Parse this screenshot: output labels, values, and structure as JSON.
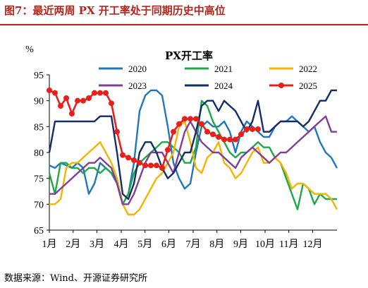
{
  "figure": {
    "title": "图7：最近两周 PX 开工率处于同期历史中高位",
    "source": "数据来源：Wind、开源证券研究所"
  },
  "chart_data": {
    "type": "line",
    "title": "PX开工率",
    "ylabel": "%",
    "ylim": [
      65,
      95
    ],
    "yticks": [
      65,
      70,
      75,
      80,
      85,
      90,
      95
    ],
    "xlim": [
      0,
      52
    ],
    "month_ticks": [
      {
        "label": "1月",
        "x": 0
      },
      {
        "label": "2月",
        "x": 4.3
      },
      {
        "label": "3月",
        "x": 8.6
      },
      {
        "label": "4月",
        "x": 13
      },
      {
        "label": "5月",
        "x": 17.3
      },
      {
        "label": "6月",
        "x": 21.6
      },
      {
        "label": "7月",
        "x": 26
      },
      {
        "label": "8月",
        "x": 30.3
      },
      {
        "label": "9月",
        "x": 34.6
      },
      {
        "label": "10月",
        "x": 39
      },
      {
        "label": "11月",
        "x": 43.3
      },
      {
        "label": "12月",
        "x": 47.6
      }
    ],
    "legend_position": "top",
    "series": [
      {
        "name": "2020",
        "color": "#1f77c0",
        "markers": false,
        "values": [
          77.5,
          77,
          78,
          77.5,
          77,
          78,
          77,
          72,
          74,
          78,
          77,
          76,
          74,
          70,
          72,
          78,
          88,
          91,
          92,
          92,
          91,
          85,
          78,
          75,
          73,
          74,
          80,
          85,
          86,
          85,
          85,
          86,
          84,
          80,
          84,
          86,
          85,
          84,
          83,
          83,
          85,
          86,
          86,
          87,
          86,
          85,
          84,
          85,
          82,
          80,
          79,
          77
        ]
      },
      {
        "name": "2021",
        "color": "#1ea84a",
        "markers": false,
        "values": [
          76,
          72,
          78,
          78,
          77,
          77,
          76,
          77,
          77,
          76,
          77,
          76,
          75,
          70,
          72,
          76,
          78,
          79,
          80,
          81,
          82,
          82,
          81,
          80,
          78,
          78,
          81,
          90,
          89,
          86,
          84,
          82,
          80,
          79,
          80,
          80,
          81,
          82,
          81,
          81,
          79,
          78,
          75,
          72,
          69,
          74,
          73,
          70,
          72,
          71,
          71,
          71
        ]
      },
      {
        "name": "2022",
        "color": "#f5b400",
        "markers": false,
        "values": [
          70,
          70,
          71,
          77,
          78,
          78,
          79,
          80,
          81,
          82,
          80,
          78,
          75,
          70,
          68,
          68,
          69,
          71,
          73,
          75,
          76,
          78,
          80,
          85,
          86,
          82,
          77,
          76,
          79,
          80,
          82,
          78,
          77,
          75,
          76,
          78,
          80,
          81,
          78,
          78,
          79,
          78,
          76,
          73,
          74,
          74,
          73,
          72,
          72,
          72,
          71,
          69
        ]
      },
      {
        "name": "2023",
        "color": "#7f3f98",
        "markers": false,
        "values": [
          72,
          72,
          73,
          74,
          75,
          76,
          77,
          78,
          78,
          79,
          78,
          77,
          74,
          70,
          70,
          72,
          75,
          78,
          80,
          80,
          80,
          78,
          76,
          80,
          84,
          86,
          84,
          82,
          81,
          80,
          80,
          79,
          78,
          77,
          79,
          80,
          81,
          80,
          79,
          78,
          79,
          80,
          80,
          81,
          82,
          83,
          84,
          85,
          86,
          87,
          84,
          84
        ]
      },
      {
        "name": "2024",
        "color": "#132d6b",
        "markers": false,
        "values": [
          80,
          86,
          86,
          86,
          86,
          86,
          86,
          86,
          86,
          87,
          87,
          87,
          80,
          72,
          71,
          74,
          80,
          82,
          82,
          80,
          77,
          75,
          76,
          78,
          80,
          80,
          84,
          89,
          90,
          90,
          88,
          90,
          89,
          88,
          86,
          84,
          86,
          90,
          84,
          84,
          85,
          86,
          86,
          86,
          86,
          85,
          86,
          88,
          90,
          90,
          92,
          92
        ]
      },
      {
        "name": "2025",
        "color": "#e8201c",
        "markers": true,
        "values": [
          92,
          91.5,
          89,
          90.5,
          87.5,
          90,
          90,
          90.5,
          91.5,
          91.5,
          91.5,
          89.5,
          84,
          79.5,
          79,
          78.5,
          78,
          77.5,
          77.5,
          77.5,
          77,
          80.5,
          84,
          85.5,
          86.5,
          86.5,
          86.5,
          85.5,
          84,
          83.5,
          83,
          82.5,
          82.5,
          82.5,
          83.5,
          84.5,
          84.5,
          84.5
        ]
      }
    ]
  }
}
